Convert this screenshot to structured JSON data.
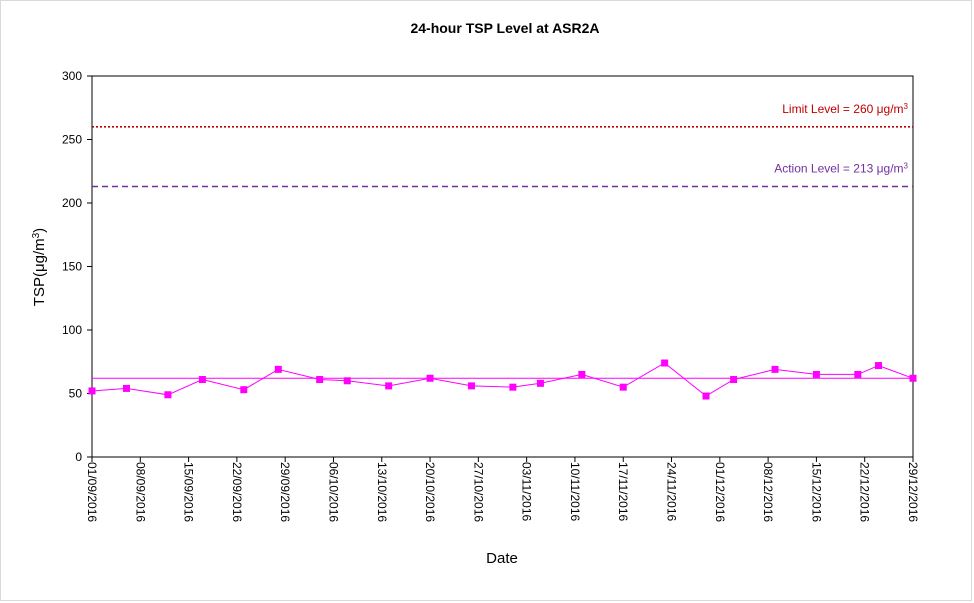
{
  "chart_data": {
    "type": "line",
    "title": "24-hour TSP Level at ASR2A",
    "xlabel": "Date",
    "ylabel_main": "TSP(μg/m",
    "ylabel_sup": "3",
    "ylabel_close": ")",
    "ylim": [
      0,
      300
    ],
    "yticks": [
      0,
      50,
      100,
      150,
      200,
      250,
      300
    ],
    "xlim": [
      "2016-09-01",
      "2016-12-29"
    ],
    "xtick_labels": [
      "01/09/2016",
      "08/09/2016",
      "15/09/2016",
      "22/09/2016",
      "29/09/2016",
      "06/10/2016",
      "13/10/2016",
      "20/10/2016",
      "27/10/2016",
      "03/11/2016",
      "10/11/2016",
      "17/11/2016",
      "24/11/2016",
      "01/12/2016",
      "08/12/2016",
      "15/12/2016",
      "22/12/2016",
      "29/12/2016"
    ],
    "xtick_dates": [
      "2016-09-01",
      "2016-09-08",
      "2016-09-15",
      "2016-09-22",
      "2016-09-29",
      "2016-10-06",
      "2016-10-13",
      "2016-10-20",
      "2016-10-27",
      "2016-11-03",
      "2016-11-10",
      "2016-11-17",
      "2016-11-24",
      "2016-12-01",
      "2016-12-08",
      "2016-12-15",
      "2016-12-22",
      "2016-12-29"
    ],
    "series": [
      {
        "color": "#ff00ff",
        "x": [
          "2016-09-01",
          "2016-09-06",
          "2016-09-12",
          "2016-09-17",
          "2016-09-23",
          "2016-09-28",
          "2016-10-04",
          "2016-10-08",
          "2016-10-14",
          "2016-10-20",
          "2016-10-26",
          "2016-11-01",
          "2016-11-05",
          "2016-11-11",
          "2016-11-17",
          "2016-11-23",
          "2016-11-29",
          "2016-12-03",
          "2016-12-09",
          "2016-12-15",
          "2016-12-21",
          "2016-12-24",
          "2016-12-29"
        ],
        "y": [
          52,
          54,
          49,
          61,
          53,
          69,
          61,
          60,
          56,
          62,
          56,
          55,
          58,
          65,
          55,
          74,
          48,
          61,
          69,
          65,
          65,
          72,
          62
        ]
      }
    ],
    "average_line": {
      "value": 62,
      "color": "#ff00ff"
    },
    "limit_line": {
      "value": 260,
      "color": "#c00000",
      "label_prefix": "Limit Level = 260 ",
      "label_unit": "μg/m",
      "label_sup": "3"
    },
    "action_line": {
      "value": 213,
      "color": "#7030a0",
      "label_prefix": "Action Level = 213 ",
      "label_unit": "μg/m",
      "label_sup": "3"
    },
    "grid": false,
    "legend": "none"
  }
}
